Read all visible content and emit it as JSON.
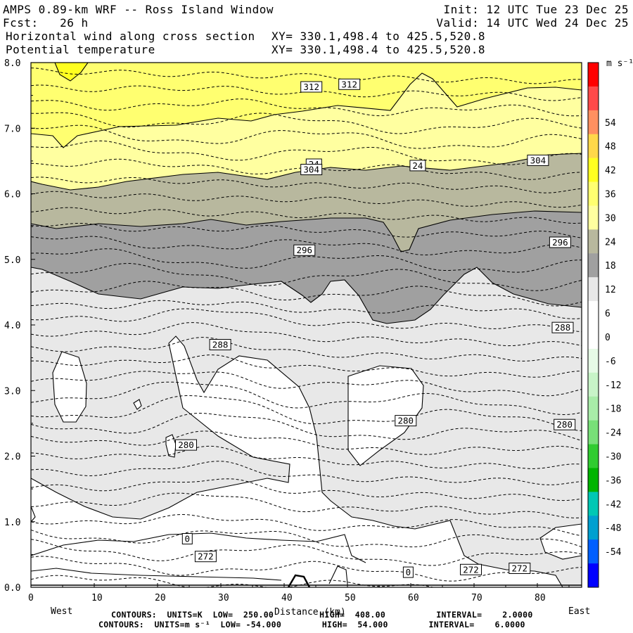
{
  "header": {
    "line1_left": "AMPS 0.89-km WRF -- Ross Island Window",
    "line1_right": "Init: 12 UTC Tue 23 Dec 25",
    "line2_left": "Fcst:   26 h",
    "line2_right": "Valid: 14 UTC Wed 24 Dec 25",
    "line3_left": "Horizontal wind along cross section",
    "line3_right": "XY= 330.1,498.4 to 425.5,520.8",
    "line4_left": "Potential temperature",
    "line4_right": "XY= 330.1,498.4 to 425.5,520.8"
  },
  "footer": {
    "line1": "CONTOURS:  UNITS=K  LOW=  250.00         HIGH=  408.00          INTERVAL=    2.0000",
    "line2": "CONTOURS:  UNITS=m s⁻¹  LOW= -54.000        HIGH=  54.000        INTERVAL=    6.0000"
  },
  "colorbar": {
    "unit_label": "m s⁻¹",
    "colors": [
      "#0000ff",
      "#005fff",
      "#00a0d0",
      "#00c8b4",
      "#00b400",
      "#30cc30",
      "#78e078",
      "#a8eca8",
      "#c8f4c8",
      "#e6fae6",
      "#ffffff",
      "#ffffff",
      "#e8e8e8",
      "#a0a0a0",
      "#b8b89e",
      "#ffffa0",
      "#ffff70",
      "#ffff20",
      "#ffd84a",
      "#ff9060",
      "#ff4a4a",
      "#ff0000"
    ],
    "tick_labels": [
      "-54",
      "-48",
      "-42",
      "-36",
      "-30",
      "-24",
      "-18",
      "-12",
      "-6",
      "0",
      "6",
      "12",
      "18",
      "24",
      "30",
      "36",
      "42",
      "48",
      "54"
    ]
  },
  "chart_data": {
    "type": "contour cross-section",
    "x_axis": {
      "ticks": [
        "0",
        "10",
        "20",
        "30",
        "40",
        "50",
        "60",
        "70",
        "80"
      ],
      "range": [
        0,
        87
      ],
      "label": "Distance (km)",
      "left_end": "West",
      "right_end": "East"
    },
    "y_axis": {
      "ticks": [
        "0.0",
        "1.0",
        "2.0",
        "3.0",
        "4.0",
        "5.0",
        "6.0",
        "7.0",
        "8.0"
      ],
      "range": [
        0,
        8
      ]
    },
    "theta_contours_K": {
      "low": 250,
      "high": 408,
      "interval": 2,
      "labeled": [
        "272",
        "280",
        "288",
        "296",
        "304",
        "312"
      ]
    },
    "wind_contours_ms": {
      "low": -54,
      "high": 54,
      "interval": 6,
      "labeled": [
        "0",
        "24"
      ]
    },
    "contour_labels": [
      {
        "text": "312",
        "x": 44.3,
        "y": 7.63
      },
      {
        "text": "312",
        "x": 50.3,
        "y": 7.67
      },
      {
        "text": "24",
        "x": 44.7,
        "y": 6.45
      },
      {
        "text": "304",
        "x": 44.3,
        "y": 6.37
      },
      {
        "text": "24",
        "x": 61.1,
        "y": 6.43
      },
      {
        "text": "304",
        "x": 80.1,
        "y": 6.51
      },
      {
        "text": "296",
        "x": 43.2,
        "y": 5.14
      },
      {
        "text": "296",
        "x": 83.6,
        "y": 5.26
      },
      {
        "text": "288",
        "x": 84.0,
        "y": 3.96
      },
      {
        "text": "288",
        "x": 29.9,
        "y": 3.7
      },
      {
        "text": "280",
        "x": 59.2,
        "y": 2.54
      },
      {
        "text": "280",
        "x": 84.3,
        "y": 2.48
      },
      {
        "text": "280",
        "x": 24.5,
        "y": 2.17
      },
      {
        "text": "0",
        "x": 24.7,
        "y": 0.74
      },
      {
        "text": "272",
        "x": 27.6,
        "y": 0.47
      },
      {
        "text": "0",
        "x": 59.6,
        "y": 0.23
      },
      {
        "text": "272",
        "x": 69.5,
        "y": 0.27
      },
      {
        "text": "272",
        "x": 77.2,
        "y": 0.29
      }
    ]
  }
}
